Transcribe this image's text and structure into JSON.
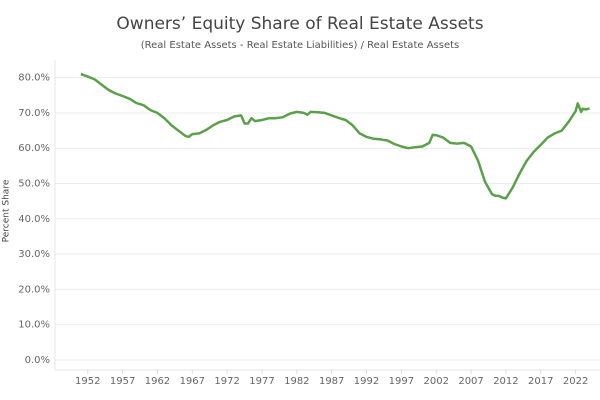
{
  "chart_data": {
    "type": "line",
    "title": "Owners’ Equity Share of Real Estate Assets",
    "subtitle": "(Real Estate Assets - Real Estate Liabilities) / Real Estate Assets",
    "y_label": "Percent Share",
    "x": [
      1951,
      1952,
      1953,
      1954,
      1955,
      1956,
      1957,
      1958,
      1959,
      1960,
      1961,
      1962,
      1963,
      1964,
      1965,
      1966,
      1966.5,
      1967,
      1968,
      1969,
      1970,
      1971,
      1972,
      1973,
      1974,
      1974.5,
      1975,
      1975.5,
      1976,
      1977,
      1978,
      1979,
      1980,
      1981,
      1982,
      1983,
      1983.5,
      1984,
      1985,
      1986,
      1987,
      1988,
      1989,
      1990,
      1991,
      1992,
      1993,
      1994,
      1995,
      1996,
      1997,
      1998,
      1999,
      2000,
      2001,
      2001.5,
      2002,
      2003,
      2004,
      2005,
      2006,
      2007,
      2008,
      2009,
      2010,
      2010.5,
      2011,
      2011.5,
      2012,
      2013,
      2014,
      2015,
      2016,
      2017,
      2018,
      2019,
      2020,
      2021,
      2022,
      2022.3,
      2022.8,
      2023,
      2023.5,
      2024
    ],
    "series": [
      {
        "name": "Owners’ Equity Share",
        "color": "#5ba04a",
        "values": [
          81,
          80.3,
          79.5,
          78,
          76.5,
          75.5,
          74.8,
          74,
          72.8,
          72.2,
          70.8,
          70,
          68.5,
          66.5,
          65,
          63.5,
          63.2,
          64,
          64.2,
          65.2,
          66.5,
          67.5,
          68,
          69,
          69.3,
          67,
          67,
          68.5,
          67.7,
          68,
          68.5,
          68.5,
          68.8,
          69.8,
          70.3,
          70,
          69.5,
          70.3,
          70.2,
          70,
          69.3,
          68.6,
          68,
          66.5,
          64.2,
          63.2,
          62.7,
          62.5,
          62.2,
          61.2,
          60.5,
          60,
          60.3,
          60.5,
          61.5,
          63.8,
          63.7,
          63,
          61.5,
          61.3,
          61.5,
          60.5,
          56.5,
          50.5,
          47,
          46.5,
          46.5,
          46,
          45.8,
          49,
          53,
          56.5,
          59,
          61,
          63,
          64.2,
          65,
          67.5,
          70.5,
          72.7,
          70.3,
          71.2,
          71,
          71.3
        ]
      }
    ],
    "xlim": [
      1947.3,
      2025.5
    ],
    "xticks": [
      1952,
      1957,
      1962,
      1967,
      1972,
      1977,
      1982,
      1987,
      1992,
      1997,
      2002,
      2007,
      2012,
      2017,
      2022
    ],
    "ylim": [
      0,
      85
    ],
    "yticks": [
      {
        "value": 0,
        "label": "0.0%"
      },
      {
        "value": 10,
        "label": "10.0%"
      },
      {
        "value": 20,
        "label": "20.0%"
      },
      {
        "value": 30,
        "label": "30.0%"
      },
      {
        "value": 40,
        "label": "40.0%"
      },
      {
        "value": 50,
        "label": "50.0%"
      },
      {
        "value": 60,
        "label": "60.0%"
      },
      {
        "value": 70,
        "label": "70.0%"
      },
      {
        "value": 80,
        "label": "80.0%"
      }
    ],
    "grid": true
  }
}
